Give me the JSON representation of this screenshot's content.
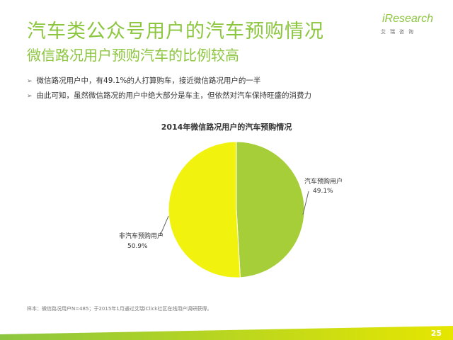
{
  "header": {
    "title": "汽车类公众号用户的汽车预购情况",
    "subtitle": "微信路况用户预购汽车的比例较高"
  },
  "logo": {
    "brand": "iResearch",
    "tagline": "艾瑞咨询"
  },
  "bullets": [
    "微信路况用户中，有49.1%的人打算购车，接近微信路况用户的一半",
    "由此可知，虽然微信路况的用户中绝大部分是车主，但依然对汽车保持旺盛的消费力"
  ],
  "chart_data": {
    "type": "pie",
    "title": "2014年微信路况用户的汽车预购情况",
    "slices": [
      {
        "label": "汽车预购用户",
        "value": 49.1,
        "display": "49.1%",
        "color": "#a6ce39"
      },
      {
        "label": "非汽车预购用户",
        "value": 50.9,
        "display": "50.9%",
        "color": "#f2f20f"
      }
    ],
    "legend": "none"
  },
  "footnote": "样本：微信路况用户N=485；于2015年1月通过艾瑞iClick社区在线用户调研获得。",
  "footer": {
    "page_number": "25",
    "colors": [
      "#8cc63f",
      "#e6e600"
    ]
  }
}
